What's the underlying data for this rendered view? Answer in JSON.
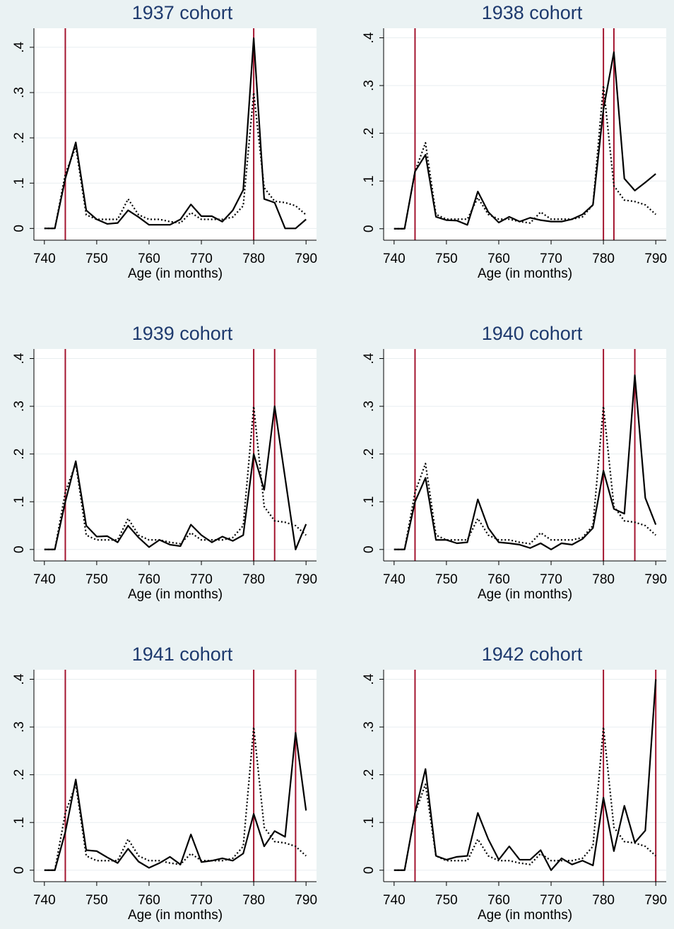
{
  "chart_data": [
    {
      "type": "line",
      "title": "1937 cohort",
      "xlabel": "Age (in months)",
      "x": [
        740,
        742,
        744,
        746,
        748,
        750,
        752,
        754,
        756,
        758,
        760,
        762,
        764,
        766,
        768,
        770,
        772,
        774,
        776,
        778,
        780,
        782,
        784,
        786,
        788,
        790
      ],
      "series": [
        {
          "color": "#000000",
          "style": "solid",
          "values": [
            0,
            0,
            0.11,
            0.19,
            0.04,
            0.02,
            0.01,
            0.012,
            0.04,
            0.025,
            0.008,
            0.008,
            0.008,
            0.02,
            0.053,
            0.027,
            0.027,
            0.015,
            0.04,
            0.085,
            0.42,
            0.065,
            0.057,
            0,
            0,
            0.02
          ]
        },
        {
          "color": "#000000",
          "style": "dotted",
          "values": [
            0,
            0,
            0.12,
            0.18,
            0.03,
            0.02,
            0.02,
            0.02,
            0.065,
            0.03,
            0.02,
            0.02,
            0.015,
            0.012,
            0.035,
            0.02,
            0.02,
            0.02,
            0.025,
            0.05,
            0.3,
            0.09,
            0.06,
            0.057,
            0.05,
            0.03
          ]
        }
      ],
      "vlines": [
        744,
        780
      ],
      "vline_color": "#a3152f",
      "xlim": [
        738,
        792
      ],
      "ylim": [
        -0.026,
        0.442
      ],
      "xticks": [
        740,
        750,
        760,
        770,
        780,
        790
      ],
      "yticks": [
        0,
        {
          "value": 0.1,
          "label": ".1"
        },
        {
          "value": 0.2,
          "label": ".2"
        },
        {
          "value": 0.3,
          "label": ".3"
        },
        {
          "value": 0.4,
          "label": ".4"
        }
      ],
      "grid": true
    },
    {
      "type": "line",
      "title": "1938 cohort",
      "xlabel": "Age (in months)",
      "x": [
        740,
        742,
        744,
        746,
        748,
        750,
        752,
        754,
        756,
        758,
        760,
        762,
        764,
        766,
        768,
        770,
        772,
        774,
        776,
        778,
        780,
        782,
        784,
        786,
        788,
        790
      ],
      "series": [
        {
          "color": "#000000",
          "style": "solid",
          "values": [
            0,
            0,
            0.12,
            0.155,
            0.025,
            0.018,
            0.017,
            0.008,
            0.078,
            0.035,
            0.013,
            0.025,
            0.015,
            0.023,
            0.018,
            0.015,
            0.015,
            0.02,
            0.03,
            0.05,
            0.25,
            0.37,
            0.105,
            0.08,
            0.097,
            0.115
          ]
        },
        {
          "color": "#000000",
          "style": "dotted",
          "values": [
            0,
            0,
            0.12,
            0.18,
            0.03,
            0.02,
            0.02,
            0.02,
            0.065,
            0.03,
            0.02,
            0.02,
            0.015,
            0.012,
            0.035,
            0.02,
            0.02,
            0.02,
            0.025,
            0.05,
            0.3,
            0.09,
            0.06,
            0.057,
            0.05,
            0.03
          ]
        }
      ],
      "vlines": [
        744,
        780,
        782
      ],
      "vline_color": "#a3152f",
      "xlim": [
        738,
        792
      ],
      "ylim": [
        -0.024,
        0.42
      ],
      "xticks": [
        740,
        750,
        760,
        770,
        780,
        790
      ],
      "yticks": [
        0,
        {
          "value": 0.1,
          "label": ".1"
        },
        {
          "value": 0.2,
          "label": ".2"
        },
        {
          "value": 0.3,
          "label": ".3"
        },
        {
          "value": 0.4,
          "label": ".4"
        }
      ],
      "grid": true
    },
    {
      "type": "line",
      "title": "1939 cohort",
      "xlabel": "Age (in months)",
      "x": [
        740,
        742,
        744,
        746,
        748,
        750,
        752,
        754,
        756,
        758,
        760,
        762,
        764,
        766,
        768,
        770,
        772,
        774,
        776,
        778,
        780,
        782,
        784,
        786,
        788,
        790
      ],
      "series": [
        {
          "color": "#000000",
          "style": "solid",
          "values": [
            0,
            0,
            0.1,
            0.185,
            0.05,
            0.027,
            0.028,
            0.015,
            0.05,
            0.025,
            0.005,
            0.02,
            0.01,
            0.007,
            0.052,
            0.03,
            0.015,
            0.027,
            0.018,
            0.03,
            0.2,
            0.125,
            0.3,
            0.15,
            0,
            0.053
          ]
        },
        {
          "color": "#000000",
          "style": "dotted",
          "values": [
            0,
            0,
            0.12,
            0.18,
            0.03,
            0.02,
            0.02,
            0.02,
            0.065,
            0.03,
            0.02,
            0.02,
            0.015,
            0.012,
            0.035,
            0.02,
            0.02,
            0.02,
            0.025,
            0.05,
            0.3,
            0.09,
            0.06,
            0.057,
            0.05,
            0.03
          ]
        }
      ],
      "vlines": [
        744,
        780,
        784
      ],
      "vline_color": "#a3152f",
      "xlim": [
        738,
        792
      ],
      "ylim": [
        -0.024,
        0.42
      ],
      "xticks": [
        740,
        750,
        760,
        770,
        780,
        790
      ],
      "yticks": [
        0,
        {
          "value": 0.1,
          "label": ".1"
        },
        {
          "value": 0.2,
          "label": ".2"
        },
        {
          "value": 0.3,
          "label": ".3"
        },
        {
          "value": 0.4,
          "label": ".4"
        }
      ],
      "grid": true
    },
    {
      "type": "line",
      "title": "1940 cohort",
      "xlabel": "Age (in months)",
      "x": [
        740,
        742,
        744,
        746,
        748,
        750,
        752,
        754,
        756,
        758,
        760,
        762,
        764,
        766,
        768,
        770,
        772,
        774,
        776,
        778,
        780,
        782,
        784,
        786,
        788,
        790
      ],
      "series": [
        {
          "color": "#000000",
          "style": "solid",
          "values": [
            0,
            0,
            0.1,
            0.15,
            0.02,
            0.02,
            0.013,
            0.015,
            0.105,
            0.045,
            0.015,
            0.013,
            0.01,
            0.003,
            0.013,
            0,
            0.013,
            0.01,
            0.022,
            0.045,
            0.165,
            0.085,
            0.075,
            0.365,
            0.108,
            0.052
          ]
        },
        {
          "color": "#000000",
          "style": "dotted",
          "values": [
            0,
            0,
            0.12,
            0.18,
            0.03,
            0.02,
            0.02,
            0.02,
            0.065,
            0.03,
            0.02,
            0.02,
            0.015,
            0.012,
            0.035,
            0.02,
            0.02,
            0.02,
            0.025,
            0.05,
            0.3,
            0.09,
            0.06,
            0.057,
            0.05,
            0.03
          ]
        }
      ],
      "vlines": [
        744,
        780,
        786
      ],
      "vline_color": "#a3152f",
      "xlim": [
        738,
        792
      ],
      "ylim": [
        -0.024,
        0.42
      ],
      "xticks": [
        740,
        750,
        760,
        770,
        780,
        790
      ],
      "yticks": [
        0,
        {
          "value": 0.1,
          "label": ".1"
        },
        {
          "value": 0.2,
          "label": ".2"
        },
        {
          "value": 0.3,
          "label": ".3"
        },
        {
          "value": 0.4,
          "label": ".4"
        }
      ],
      "grid": true
    },
    {
      "type": "line",
      "title": "1941 cohort",
      "xlabel": "Age (in months)",
      "x": [
        740,
        742,
        744,
        746,
        748,
        750,
        752,
        754,
        756,
        758,
        760,
        762,
        764,
        766,
        768,
        770,
        772,
        774,
        776,
        778,
        780,
        782,
        784,
        786,
        788,
        790
      ],
      "series": [
        {
          "color": "#000000",
          "style": "solid",
          "values": [
            0,
            0,
            0.08,
            0.19,
            0.042,
            0.04,
            0.027,
            0.015,
            0.045,
            0.018,
            0.005,
            0.015,
            0.028,
            0.012,
            0.075,
            0.017,
            0.02,
            0.025,
            0.02,
            0.035,
            0.118,
            0.05,
            0.082,
            0.07,
            0.288,
            0.125
          ]
        },
        {
          "color": "#000000",
          "style": "dotted",
          "values": [
            0,
            0,
            0.12,
            0.18,
            0.03,
            0.02,
            0.02,
            0.02,
            0.065,
            0.03,
            0.02,
            0.02,
            0.015,
            0.012,
            0.035,
            0.02,
            0.02,
            0.02,
            0.025,
            0.05,
            0.3,
            0.09,
            0.06,
            0.057,
            0.05,
            0.03
          ]
        }
      ],
      "vlines": [
        744,
        780,
        788
      ],
      "vline_color": "#a3152f",
      "xlim": [
        738,
        792
      ],
      "ylim": [
        -0.024,
        0.42
      ],
      "xticks": [
        740,
        750,
        760,
        770,
        780,
        790
      ],
      "yticks": [
        0,
        {
          "value": 0.1,
          "label": ".1"
        },
        {
          "value": 0.2,
          "label": ".2"
        },
        {
          "value": 0.3,
          "label": ".3"
        },
        {
          "value": 0.4,
          "label": ".4"
        }
      ],
      "grid": true
    },
    {
      "type": "line",
      "title": "1942 cohort",
      "xlabel": "Age (in months)",
      "x": [
        740,
        742,
        744,
        746,
        748,
        750,
        752,
        754,
        756,
        758,
        760,
        762,
        764,
        766,
        768,
        770,
        772,
        774,
        776,
        778,
        780,
        782,
        784,
        786,
        788,
        790
      ],
      "series": [
        {
          "color": "#000000",
          "style": "solid",
          "values": [
            0,
            0,
            0.12,
            0.212,
            0.03,
            0.022,
            0.028,
            0.03,
            0.12,
            0.065,
            0.022,
            0.05,
            0.022,
            0.022,
            0.042,
            0,
            0.025,
            0.012,
            0.02,
            0.01,
            0.152,
            0.04,
            0.135,
            0.058,
            0.083,
            0.4
          ]
        },
        {
          "color": "#000000",
          "style": "dotted",
          "values": [
            0,
            0,
            0.12,
            0.18,
            0.03,
            0.02,
            0.02,
            0.02,
            0.065,
            0.03,
            0.02,
            0.02,
            0.015,
            0.012,
            0.035,
            0.02,
            0.02,
            0.02,
            0.025,
            0.05,
            0.3,
            0.09,
            0.06,
            0.057,
            0.05,
            0.03
          ]
        }
      ],
      "vlines": [
        744,
        780,
        790
      ],
      "vline_color": "#a3152f",
      "xlim": [
        738,
        792
      ],
      "ylim": [
        -0.024,
        0.42
      ],
      "xticks": [
        740,
        750,
        760,
        770,
        780,
        790
      ],
      "yticks": [
        0,
        {
          "value": 0.1,
          "label": ".1"
        },
        {
          "value": 0.2,
          "label": ".2"
        },
        {
          "value": 0.3,
          "label": ".3"
        },
        {
          "value": 0.4,
          "label": ".4"
        }
      ],
      "grid": true
    }
  ]
}
